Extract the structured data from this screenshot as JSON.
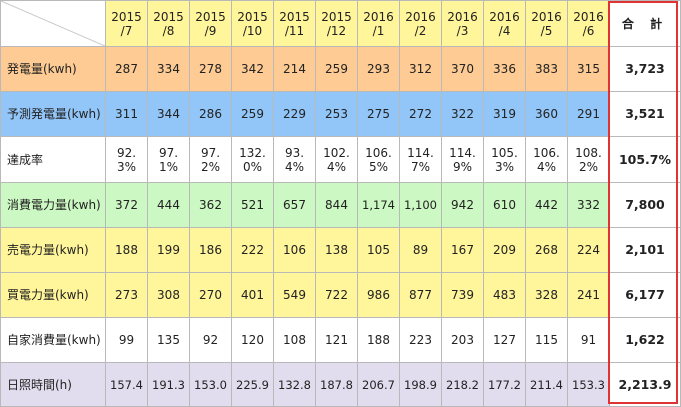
{
  "header": {
    "months": [
      "2015\n/7",
      "2015\n/8",
      "2015\n/9",
      "2015\n/10",
      "2015\n/11",
      "2015\n/12",
      "2016\n/1",
      "2016\n/2",
      "2016\n/3",
      "2016\n/4",
      "2016\n/5",
      "2016\n/6"
    ],
    "total_label": "合 計"
  },
  "rows": [
    {
      "label": "発電量(kwh)",
      "bg": "#fdcb93",
      "values": [
        "287",
        "334",
        "278",
        "342",
        "214",
        "259",
        "293",
        "312",
        "370",
        "336",
        "383",
        "315"
      ],
      "total": "3,723"
    },
    {
      "label": "予測発電量(kwh)",
      "bg": "#92c6f8",
      "values": [
        "311",
        "344",
        "286",
        "259",
        "229",
        "253",
        "275",
        "272",
        "322",
        "319",
        "360",
        "291"
      ],
      "total": "3,521"
    },
    {
      "label": "達成率",
      "bg": "#ffffff",
      "values": [
        "92.\n3%",
        "97.\n1%",
        "97.\n2%",
        "132.\n0%",
        "93.\n4%",
        "102.\n4%",
        "106.\n5%",
        "114.\n7%",
        "114.\n9%",
        "105.\n3%",
        "106.\n4%",
        "108.\n2%"
      ],
      "total": "105.7%"
    },
    {
      "label": "消費電力量(kwh)",
      "bg": "#ccf8c3",
      "values": [
        "372",
        "444",
        "362",
        "521",
        "657",
        "844",
        "1,174",
        "1,100",
        "942",
        "610",
        "442",
        "332"
      ],
      "total": "7,800"
    },
    {
      "label": "売電力量(kwh)",
      "bg": "#fff59a",
      "values": [
        "188",
        "199",
        "186",
        "222",
        "106",
        "138",
        "105",
        "89",
        "167",
        "209",
        "268",
        "224"
      ],
      "total": "2,101"
    },
    {
      "label": "買電力量(kwh)",
      "bg": "#fff59a",
      "values": [
        "273",
        "308",
        "270",
        "401",
        "549",
        "722",
        "986",
        "877",
        "739",
        "483",
        "328",
        "241"
      ],
      "total": "6,177"
    },
    {
      "label": "自家消費量(kwh)",
      "bg": "#ffffff",
      "values": [
        "99",
        "135",
        "92",
        "120",
        "108",
        "121",
        "188",
        "223",
        "203",
        "127",
        "115",
        "91"
      ],
      "total": "1,622"
    },
    {
      "label": "日照時間(h)",
      "bg": "#e1ddee",
      "values": [
        "157.4",
        "191.3",
        "153.0",
        "225.9",
        "132.8",
        "187.8",
        "206.7",
        "198.9",
        "218.2",
        "177.2",
        "211.4",
        "153.3"
      ],
      "total": "2,213.9"
    }
  ]
}
